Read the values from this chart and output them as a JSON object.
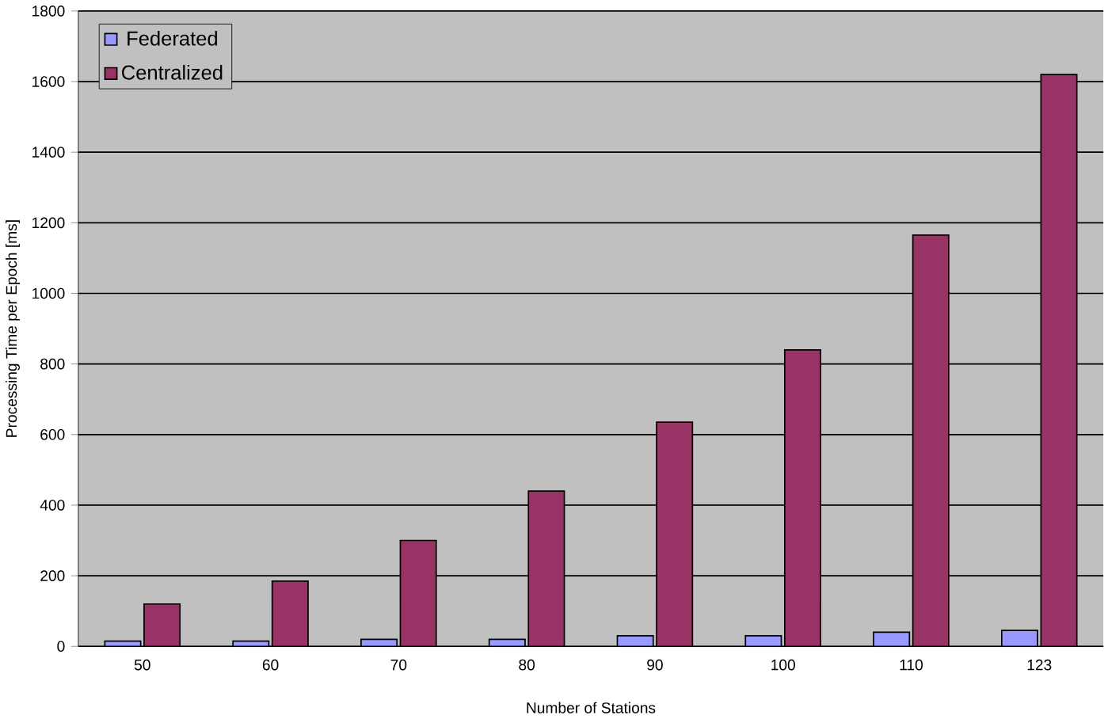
{
  "chart_data": {
    "type": "bar",
    "xlabel": "Number of Stations",
    "ylabel": "Processing Time per Epoch [ms]",
    "categories": [
      "50",
      "60",
      "70",
      "80",
      "90",
      "100",
      "110",
      "123"
    ],
    "series": [
      {
        "name": "Federated",
        "color": "#9999ff",
        "values": [
          15,
          15,
          20,
          20,
          30,
          30,
          40,
          45
        ]
      },
      {
        "name": "Centralized",
        "color": "#993366",
        "values": [
          120,
          185,
          300,
          440,
          635,
          840,
          1165,
          1620
        ]
      }
    ],
    "ylim": [
      0,
      1800
    ],
    "yticks": [
      0,
      200,
      400,
      600,
      800,
      1000,
      1200,
      1400,
      1600,
      1800
    ],
    "grid": "y",
    "legend": "top left"
  }
}
